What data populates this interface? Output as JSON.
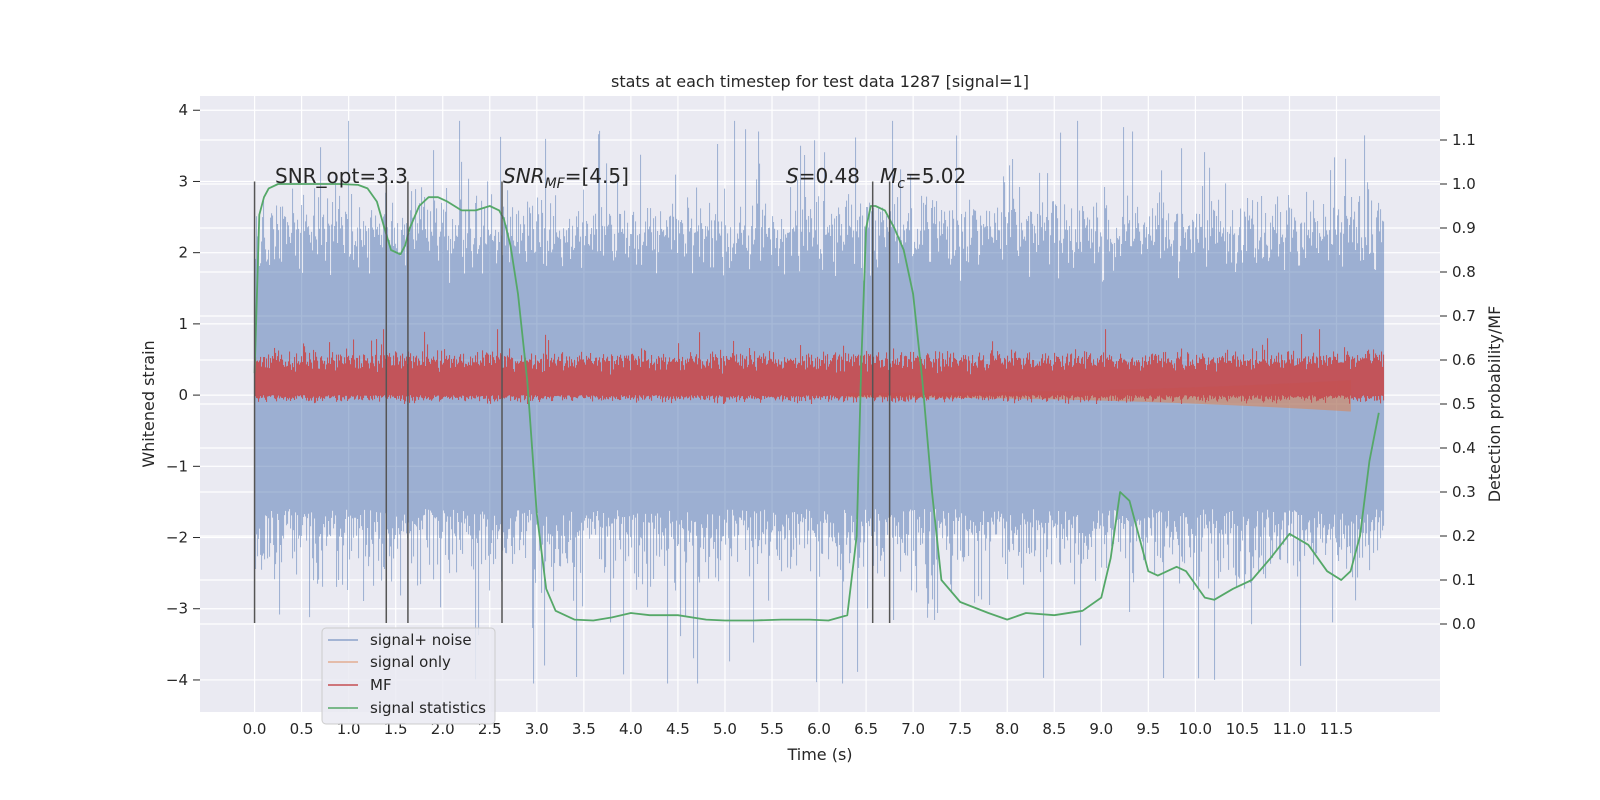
{
  "chart_data": {
    "type": "line",
    "title": "stats at each timestep for test data 1287 [signal=1]",
    "xlabel": "Time (s)",
    "ylabel": "Whitened strain",
    "ylabel_right": "Detection probability/MF",
    "xlim": [
      -0.58,
      12.6
    ],
    "ylim": [
      -4.45,
      4.2
    ],
    "ylim_right": [
      -0.2,
      1.2
    ],
    "x_ticks": [
      0.0,
      0.5,
      1.0,
      1.5,
      2.0,
      2.5,
      3.0,
      3.5,
      4.0,
      4.5,
      5.0,
      5.5,
      6.0,
      6.5,
      7.0,
      7.5,
      8.0,
      8.5,
      9.0,
      9.5,
      10.0,
      10.5,
      11.0,
      11.5
    ],
    "x_tick_labels": [
      "0.0",
      "0.5",
      "1.0",
      "1.5",
      "2.0",
      "2.5",
      "3.0",
      "3.5",
      "4.0",
      "4.5",
      "5.0",
      "5.5",
      "6.0",
      "6.5",
      "7.0",
      "7.5",
      "8.0",
      "8.5",
      "9.0",
      "9.5",
      "10.0",
      "10.5",
      "11.0",
      "11.5"
    ],
    "y_ticks": [
      -4,
      -3,
      -2,
      -1,
      0,
      1,
      2,
      3,
      4
    ],
    "y_tick_labels": [
      "−4",
      "−3",
      "−2",
      "−1",
      "0",
      "1",
      "2",
      "3",
      "4"
    ],
    "y_right_ticks": [
      0.0,
      0.1,
      0.2,
      0.3,
      0.4,
      0.5,
      0.6,
      0.7,
      0.8,
      0.9,
      1.0,
      1.1
    ],
    "y_right_tick_labels": [
      "0.0",
      "0.1",
      "0.2",
      "0.3",
      "0.4",
      "0.5",
      "0.6",
      "0.7",
      "0.8",
      "0.9",
      "1.0",
      "1.1"
    ],
    "grid": true,
    "legend_position": "lower-left",
    "series": [
      {
        "name": "signal+ noise",
        "color": "#4c72b0",
        "axis": "left",
        "style": "noise-band",
        "x_range": [
          0.0,
          12.0
        ],
        "typical_range": [
          -1.6,
          2.3
        ],
        "peak_range": [
          -4.05,
          3.85
        ]
      },
      {
        "name": "signal only",
        "color": "#dd8452",
        "axis": "left",
        "style": "chirp",
        "x_range": [
          6.3,
          11.65
        ],
        "amplitude_end": 0.18
      },
      {
        "name": "MF",
        "color": "#c44e52",
        "axis": "right",
        "style": "noise-band",
        "x_range": [
          0.0,
          12.0
        ],
        "typical_range": [
          0.52,
          0.6
        ],
        "peak_range": [
          0.5,
          0.67
        ]
      },
      {
        "name": "signal statistics",
        "color": "#55a868",
        "axis": "right",
        "x": [
          0.0,
          0.05,
          0.1,
          0.15,
          0.25,
          0.4,
          0.6,
          0.9,
          1.1,
          1.2,
          1.3,
          1.38,
          1.45,
          1.55,
          1.6,
          1.65,
          1.75,
          1.85,
          1.95,
          2.05,
          2.2,
          2.35,
          2.5,
          2.6,
          2.65,
          2.72,
          2.8,
          2.9,
          3.0,
          3.1,
          3.2,
          3.4,
          3.6,
          3.8,
          4.0,
          4.2,
          4.5,
          4.8,
          5.0,
          5.3,
          5.6,
          5.9,
          6.1,
          6.3,
          6.4,
          6.45,
          6.5,
          6.55,
          6.6,
          6.7,
          6.8,
          6.9,
          7.0,
          7.1,
          7.2,
          7.3,
          7.5,
          7.8,
          8.0,
          8.2,
          8.5,
          8.8,
          9.0,
          9.1,
          9.2,
          9.3,
          9.4,
          9.5,
          9.6,
          9.7,
          9.8,
          9.9,
          10.0,
          10.1,
          10.2,
          10.4,
          10.6,
          10.8,
          11.0,
          11.2,
          11.4,
          11.55,
          11.65,
          11.75,
          11.85,
          11.95
        ],
        "values": [
          0.57,
          0.93,
          0.97,
          0.99,
          1.0,
          1.0,
          1.0,
          1.0,
          0.998,
          0.99,
          0.96,
          0.9,
          0.85,
          0.84,
          0.86,
          0.9,
          0.95,
          0.97,
          0.97,
          0.96,
          0.94,
          0.94,
          0.95,
          0.94,
          0.92,
          0.86,
          0.75,
          0.55,
          0.25,
          0.08,
          0.03,
          0.01,
          0.008,
          0.015,
          0.025,
          0.02,
          0.02,
          0.01,
          0.008,
          0.008,
          0.01,
          0.01,
          0.008,
          0.02,
          0.2,
          0.6,
          0.9,
          0.95,
          0.95,
          0.94,
          0.9,
          0.85,
          0.75,
          0.55,
          0.3,
          0.1,
          0.05,
          0.025,
          0.01,
          0.025,
          0.02,
          0.03,
          0.06,
          0.15,
          0.3,
          0.28,
          0.2,
          0.12,
          0.11,
          0.12,
          0.13,
          0.12,
          0.09,
          0.06,
          0.055,
          0.08,
          0.1,
          0.15,
          0.205,
          0.18,
          0.12,
          0.1,
          0.12,
          0.2,
          0.37,
          0.48
        ]
      }
    ],
    "vertical_lines": [
      0.0,
      1.4,
      1.63,
      2.63,
      6.57,
      6.75
    ],
    "vertical_line_range": [
      -3.2,
      3.0
    ],
    "annotations": [
      {
        "text": "SNR_opt=3.3",
        "x": 0.2,
        "y": 3.0
      },
      {
        "text": "SNR_MF=[4.5]",
        "x": 2.62,
        "y": 3.0
      },
      {
        "text": "S=0.48",
        "x": 5.58,
        "y": 3.0
      },
      {
        "text": "M_c=5.02",
        "x": 6.6,
        "y": 3.0
      }
    ]
  },
  "legend": {
    "items": [
      {
        "label": "signal+ noise",
        "color": "#4c72b0"
      },
      {
        "label": "signal only",
        "color": "#dd8452"
      },
      {
        "label": "MF",
        "color": "#c44e52"
      },
      {
        "label": "signal statistics",
        "color": "#55a868"
      }
    ]
  },
  "annotations": {
    "snr_opt": "SNR_opt=3.3",
    "snr_mf_prefix": "SNR",
    "snr_mf_sub": "MF",
    "snr_mf_value": "=[4.5]",
    "s_var": "S",
    "s_value": "=0.48",
    "mc_var": "M",
    "mc_sub": "c",
    "mc_value": "=5.02"
  }
}
